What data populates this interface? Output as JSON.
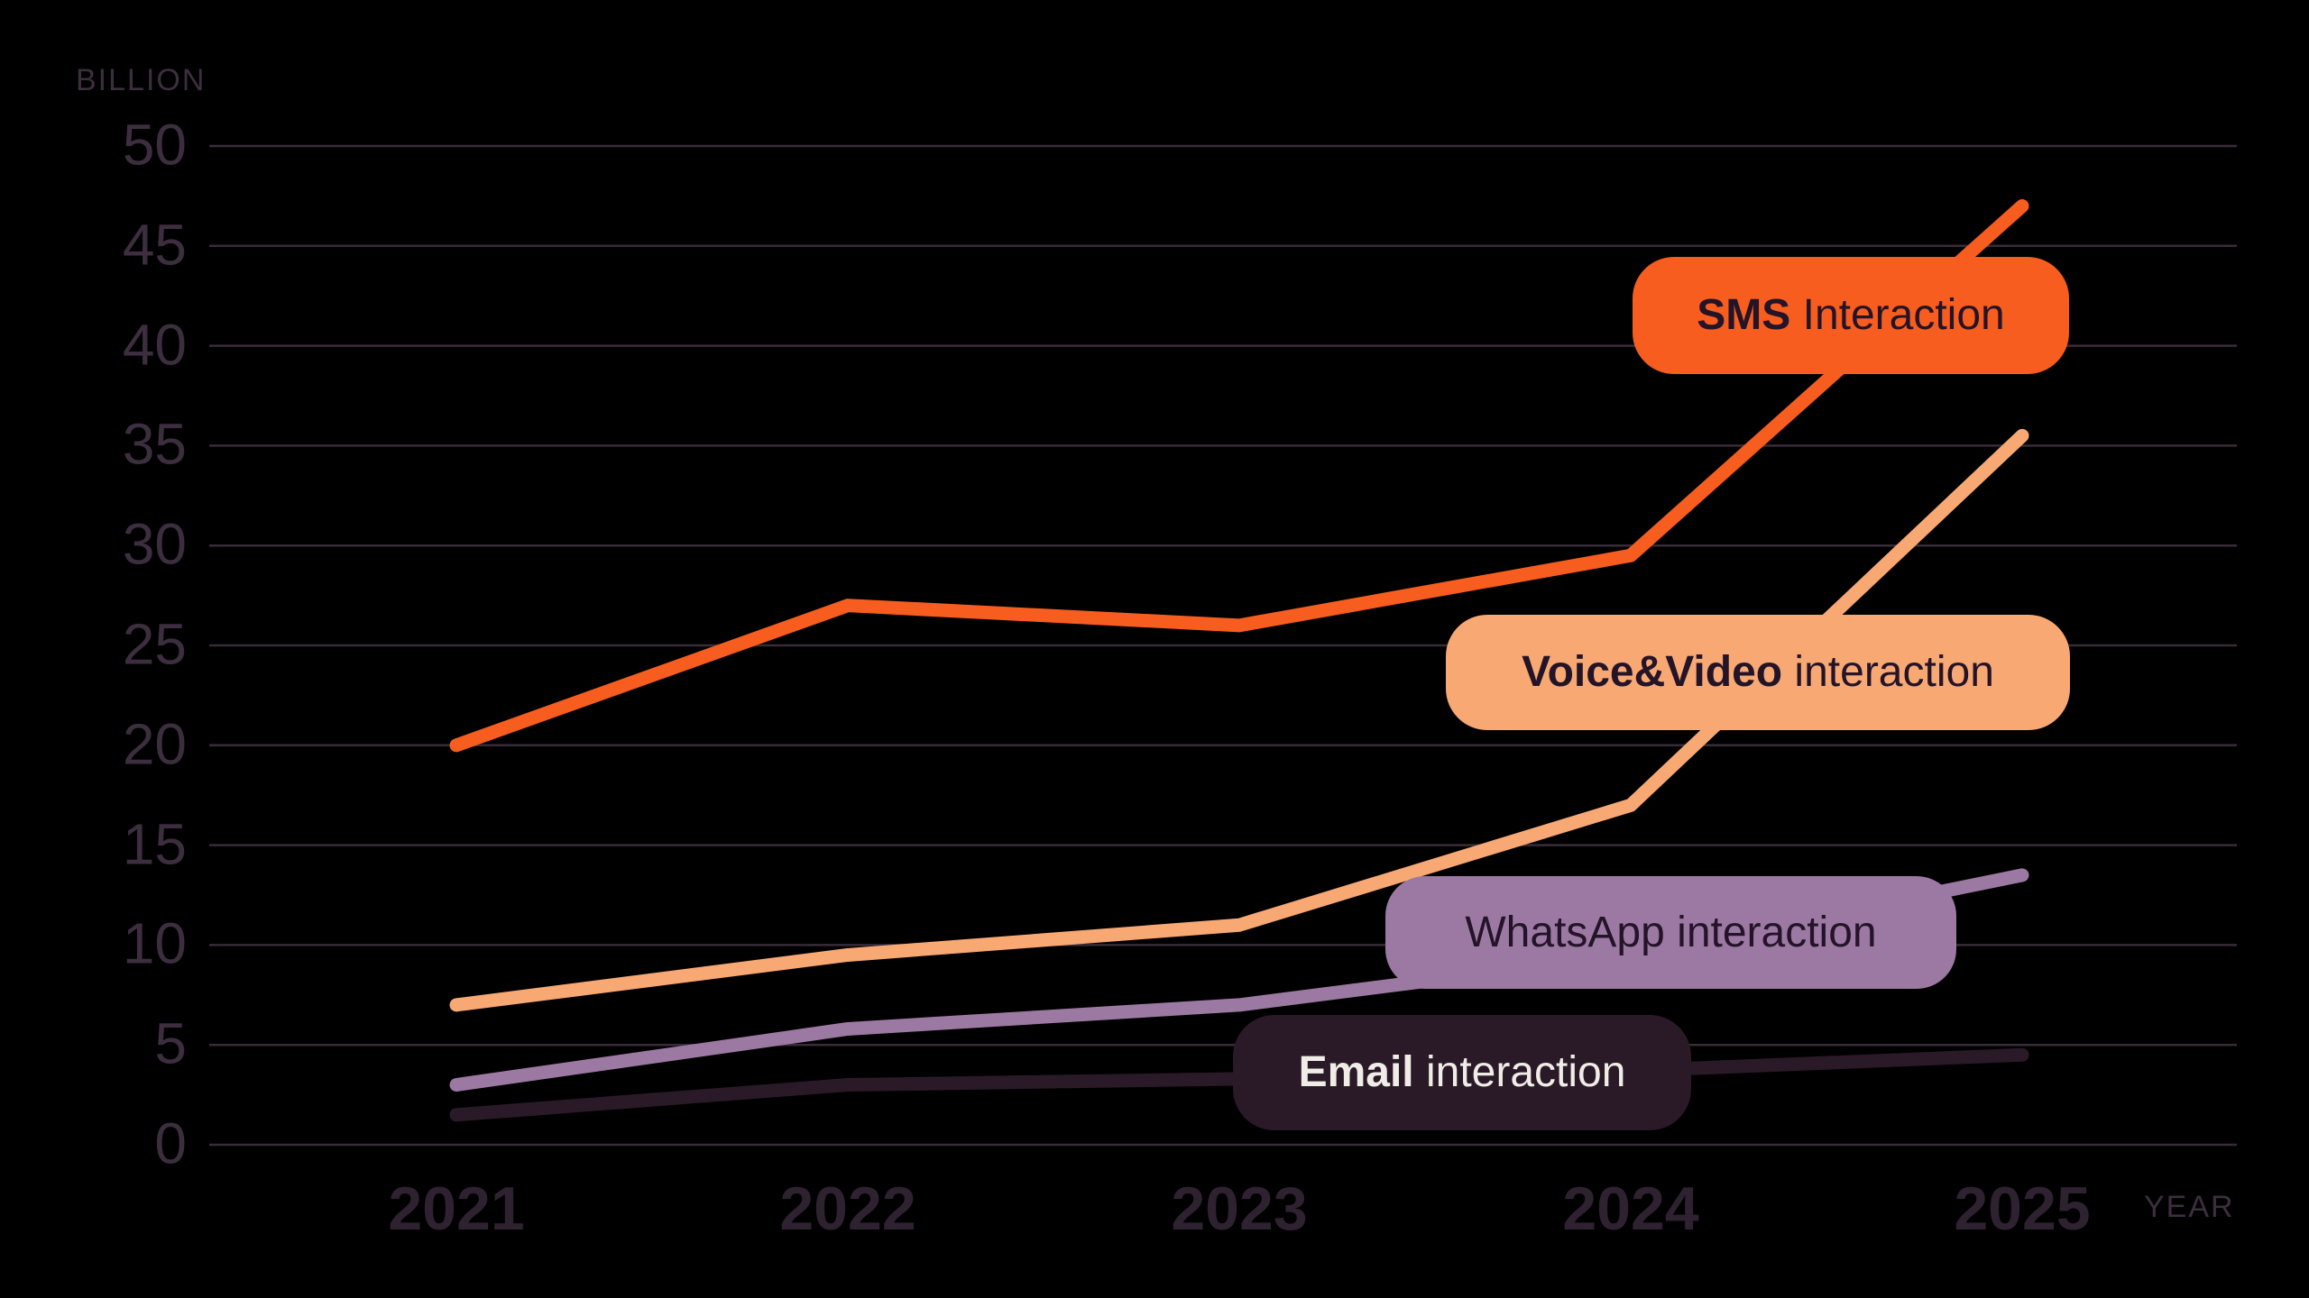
{
  "unit_labels": {
    "y": "BILLION",
    "x": "YEAR"
  },
  "colors": {
    "background": "#000000",
    "gridline": "#382C38",
    "y_axis_text": "#3C2E3E",
    "x_axis_text": "#2E2130"
  },
  "chart_data": {
    "type": "line",
    "title": "",
    "xlabel": "YEAR",
    "ylabel": "BILLION",
    "x": [
      2021,
      2022,
      2023,
      2024,
      2025
    ],
    "ylim": [
      0,
      50
    ],
    "ytick_step": 5,
    "grid": "horizontal",
    "legend_position": "inline-badges-right",
    "series": [
      {
        "name": "SMS Interaction",
        "label_bold": "SMS",
        "label_rest": " Interaction",
        "label_style": "mixed",
        "color": "#F75D1E",
        "label_text_color": "#231427",
        "values": [
          20,
          27,
          26,
          29.5,
          47
        ]
      },
      {
        "name": "Voice&Video interaction",
        "label_bold": "Voice&Video",
        "label_rest": " interaction",
        "label_style": "mixed",
        "color": "#F8A873",
        "label_text_color": "#231427",
        "values": [
          7,
          9.5,
          11,
          17,
          35.5
        ]
      },
      {
        "name": "WhatsApp interaction",
        "label_bold": "WhatsApp",
        "label_rest": " interaction",
        "label_style": "uniform",
        "color": "#9C79A2",
        "label_text_color": "#241429",
        "values": [
          3,
          5.8,
          7,
          9.5,
          13.5
        ]
      },
      {
        "name": "Email interaction",
        "label_bold": "Email",
        "label_rest": " interaction",
        "label_style": "mixed",
        "color": "#2A1A28",
        "label_text_color": "#F0EDE6",
        "values": [
          1.5,
          3,
          3.3,
          3.7,
          4.5
        ]
      }
    ]
  }
}
